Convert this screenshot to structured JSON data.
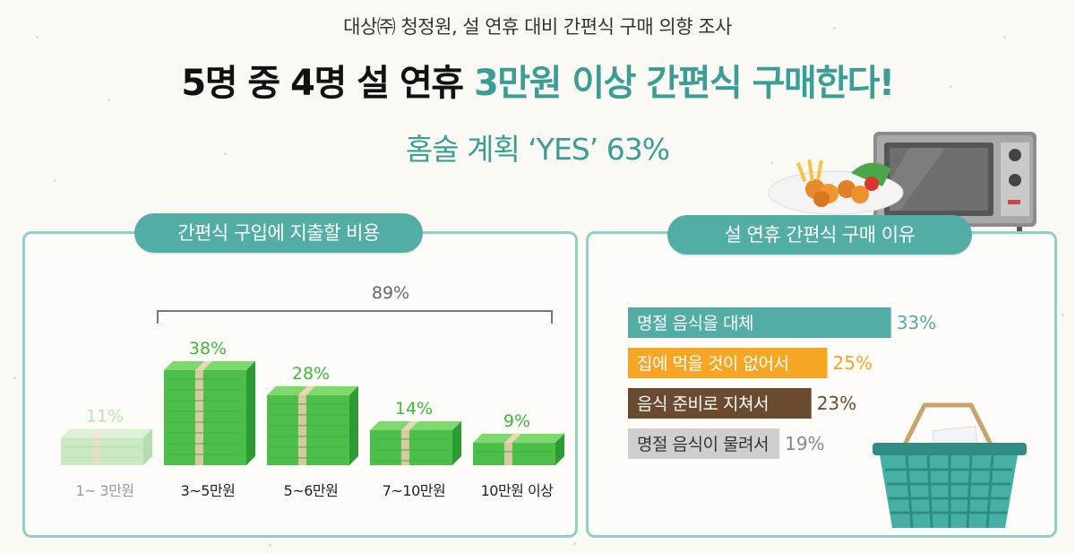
{
  "header": {
    "supertitle": "대상㈜ 청정원, 설 연휴 대비 간편식 구매 의향 조사",
    "headline_part1": "5명 중 4명 설 연휴 ",
    "headline_part2": "3만원 이상 간편식 구매한다!",
    "subheadline": "홈술 계획 ‘YES’ 63%"
  },
  "colors": {
    "teal": "#3a9e96",
    "pill": "#52aea4",
    "panel_border": "#8fd0c8",
    "green_bar": "#4cbf4a",
    "green_faded": "#c9e9c3",
    "orange": "#f5a623",
    "brown": "#6b4b2f",
    "gray": "#cccccc"
  },
  "chart_data": [
    {
      "type": "bar",
      "title": "간편식 구입에 지출할 비용",
      "categories": [
        "1~ 3만원",
        "3~5만원",
        "5~6만원",
        "7~10만원",
        "10만원 이상"
      ],
      "values": [
        11,
        38,
        28,
        14,
        9
      ],
      "value_labels": [
        "11%",
        "38%",
        "28%",
        "14%",
        "9%"
      ],
      "unit": "%",
      "bracket": {
        "label": "89%",
        "from_category": 1,
        "to_category": 4,
        "value": 89
      }
    },
    {
      "type": "bar",
      "orientation": "horizontal",
      "title": "설 연휴 간편식 구매 이유",
      "categories": [
        "명절 음식을 대체",
        "집에 먹을 것이 없어서",
        "음식 준비로 지쳐서",
        "명절 음식이 물려서"
      ],
      "values": [
        33,
        25,
        23,
        19
      ],
      "value_labels": [
        "33%",
        "25%",
        "23%",
        "19%"
      ],
      "unit": "%",
      "colors": [
        "#52aea4",
        "#f5a623",
        "#6b4b2f",
        "#cfcfcf"
      ]
    }
  ]
}
